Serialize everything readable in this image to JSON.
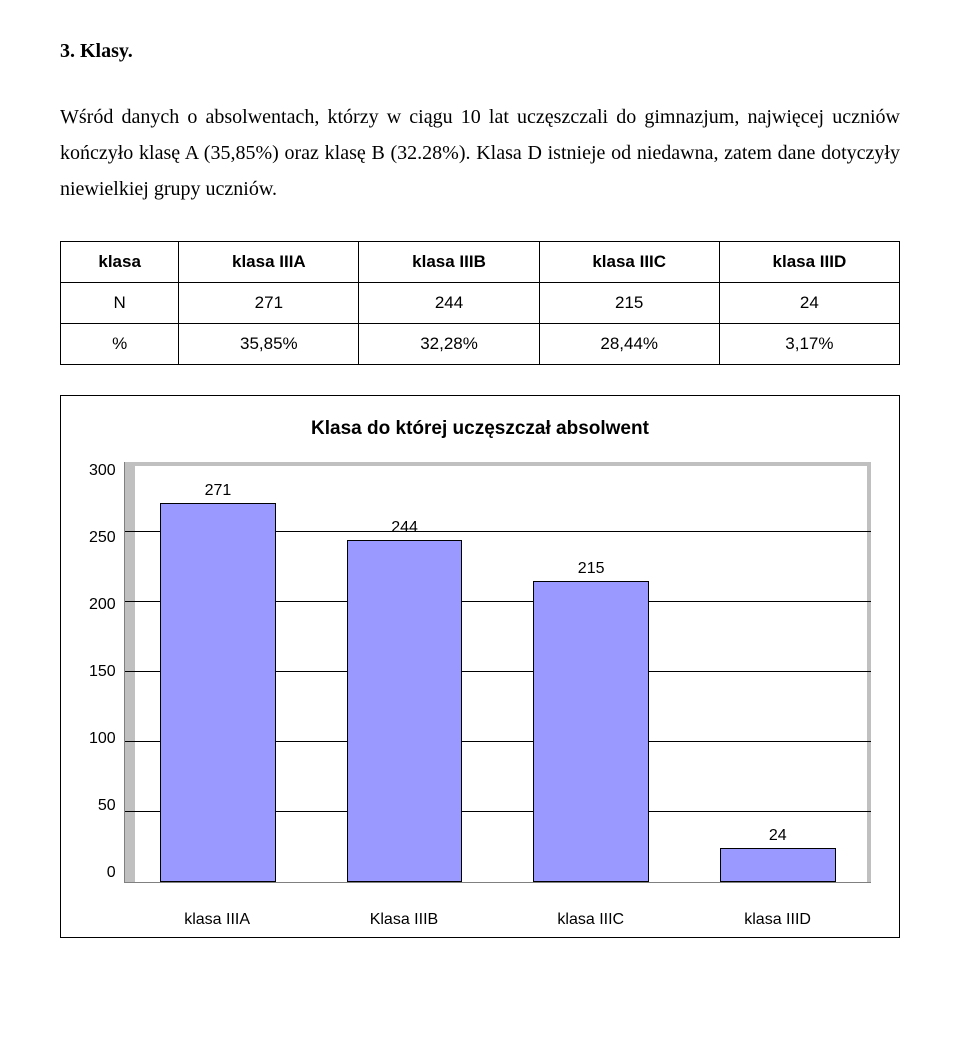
{
  "section_title": "3. Klasy.",
  "paragraph": "Wśród danych o absolwentach, którzy w ciągu 10 lat uczęszczali do gimnazjum, najwięcej uczniów kończyło klasę A (35,85%) oraz klasę B (32.28%). Klasa D istnieje od niedawna, zatem dane dotyczyły niewielkiej grupy uczniów.",
  "table": {
    "headers": [
      "klasa",
      "klasa IIIA",
      "klasa IIIB",
      "klasa IIIC",
      "klasa IIID"
    ],
    "rows": [
      [
        "N",
        "271",
        "244",
        "215",
        "24"
      ],
      [
        "%",
        "35,85%",
        "32,28%",
        "28,44%",
        "3,17%"
      ]
    ]
  },
  "chart": {
    "title": "Klasa do której uczęszczał absolwent",
    "type": "bar",
    "y_ticks": [
      "300",
      "250",
      "200",
      "150",
      "100",
      "50",
      "0"
    ],
    "y_max": 300,
    "tick_step": 50,
    "plot_bg": "#c0c0c0",
    "inner_bg": "#ffffff",
    "grid_color": "#000000",
    "bar_border": "#000000",
    "bars": [
      {
        "label": "klasa IIIA",
        "value": 271,
        "value_label": "271",
        "pct": "35,85%",
        "color": "#9999ff"
      },
      {
        "label": "Klasa IIIB",
        "value": 244,
        "value_label": "244",
        "pct": "32,28%",
        "color": "#9999ff"
      },
      {
        "label": "klasa IIIC",
        "value": 215,
        "value_label": "215",
        "pct": "28,44%",
        "color": "#9999ff"
      },
      {
        "label": "klasa IIID",
        "value": 24,
        "value_label": "24",
        "pct": "3,17%",
        "color": "#9999ff"
      }
    ]
  }
}
